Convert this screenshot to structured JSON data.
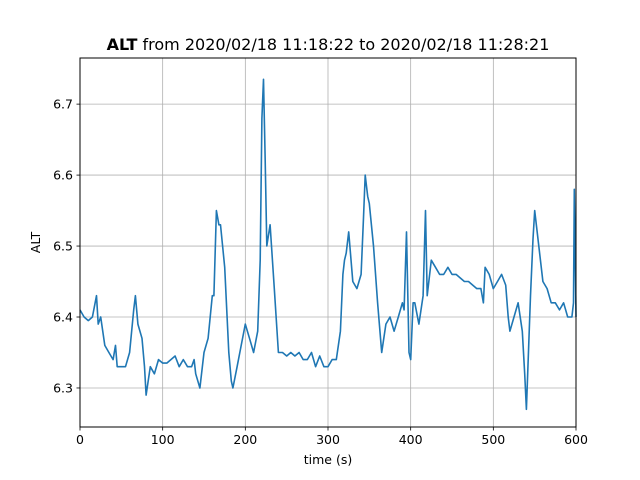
{
  "chart_data": {
    "type": "line",
    "title": {
      "variable": "ALT",
      "rest": " from 2020/02/18 11:18:22 to 2020/02/18 11:28:21"
    },
    "xlabel": "time (s)",
    "ylabel": "ALT",
    "xlim": [
      0,
      600
    ],
    "ylim": [
      6.245,
      6.765
    ],
    "xticks": [
      0,
      100,
      200,
      300,
      400,
      500,
      600
    ],
    "yticks": [
      6.3,
      6.4,
      6.5,
      6.6,
      6.7
    ],
    "xtick_labels": [
      "0",
      "100",
      "200",
      "300",
      "400",
      "500",
      "600"
    ],
    "ytick_labels": [
      "6.3",
      "6.4",
      "6.5",
      "6.6",
      "6.7"
    ],
    "grid": true,
    "line_color": "#1f77b4",
    "series": [
      {
        "x": [
          0,
          5,
          10,
          15,
          20,
          22,
          25,
          30,
          35,
          40,
          43,
          45,
          50,
          55,
          60,
          65,
          67,
          70,
          75,
          78,
          80,
          85,
          90,
          95,
          100,
          105,
          110,
          115,
          120,
          125,
          130,
          135,
          138,
          140,
          145,
          150,
          155,
          160,
          162,
          165,
          168,
          170,
          175,
          180,
          183,
          185,
          190,
          195,
          200,
          205,
          210,
          215,
          218,
          220,
          222,
          224,
          226,
          230,
          235,
          240,
          245,
          250,
          255,
          260,
          265,
          270,
          275,
          280,
          285,
          290,
          295,
          300,
          305,
          310,
          315,
          318,
          320,
          322,
          325,
          330,
          335,
          340,
          343,
          345,
          348,
          350,
          355,
          360,
          365,
          370,
          375,
          380,
          385,
          390,
          392,
          395,
          398,
          400,
          403,
          405,
          410,
          415,
          418,
          420,
          425,
          430,
          435,
          440,
          445,
          450,
          455,
          460,
          465,
          470,
          475,
          480,
          485,
          488,
          490,
          495,
          500,
          505,
          510,
          515,
          518,
          520,
          525,
          530,
          535,
          538,
          540,
          545,
          548,
          550,
          555,
          560,
          565,
          570,
          575,
          580,
          585,
          590,
          595,
          597,
          598,
          600
        ],
        "y": [
          6.41,
          6.4,
          6.395,
          6.4,
          6.43,
          6.39,
          6.4,
          6.36,
          6.35,
          6.34,
          6.36,
          6.33,
          6.33,
          6.33,
          6.35,
          6.41,
          6.43,
          6.39,
          6.37,
          6.33,
          6.29,
          6.33,
          6.32,
          6.34,
          6.335,
          6.335,
          6.34,
          6.345,
          6.33,
          6.34,
          6.33,
          6.33,
          6.34,
          6.32,
          6.3,
          6.35,
          6.37,
          6.43,
          6.43,
          6.55,
          6.53,
          6.53,
          6.47,
          6.35,
          6.31,
          6.3,
          6.33,
          6.36,
          6.39,
          6.37,
          6.35,
          6.38,
          6.48,
          6.68,
          6.735,
          6.62,
          6.5,
          6.53,
          6.44,
          6.35,
          6.35,
          6.345,
          6.35,
          6.345,
          6.35,
          6.34,
          6.34,
          6.35,
          6.33,
          6.345,
          6.33,
          6.33,
          6.34,
          6.34,
          6.38,
          6.46,
          6.48,
          6.49,
          6.52,
          6.45,
          6.44,
          6.46,
          6.54,
          6.6,
          6.57,
          6.56,
          6.5,
          6.42,
          6.35,
          6.39,
          6.4,
          6.38,
          6.4,
          6.42,
          6.41,
          6.52,
          6.35,
          6.34,
          6.42,
          6.42,
          6.39,
          6.43,
          6.55,
          6.43,
          6.48,
          6.47,
          6.46,
          6.46,
          6.47,
          6.46,
          6.46,
          6.455,
          6.45,
          6.45,
          6.445,
          6.44,
          6.44,
          6.42,
          6.47,
          6.46,
          6.44,
          6.45,
          6.46,
          6.445,
          6.4,
          6.38,
          6.4,
          6.42,
          6.38,
          6.32,
          6.27,
          6.43,
          6.51,
          6.55,
          6.5,
          6.45,
          6.44,
          6.42,
          6.42,
          6.41,
          6.42,
          6.4,
          6.4,
          6.42,
          6.58,
          6.4
        ]
      }
    ]
  }
}
